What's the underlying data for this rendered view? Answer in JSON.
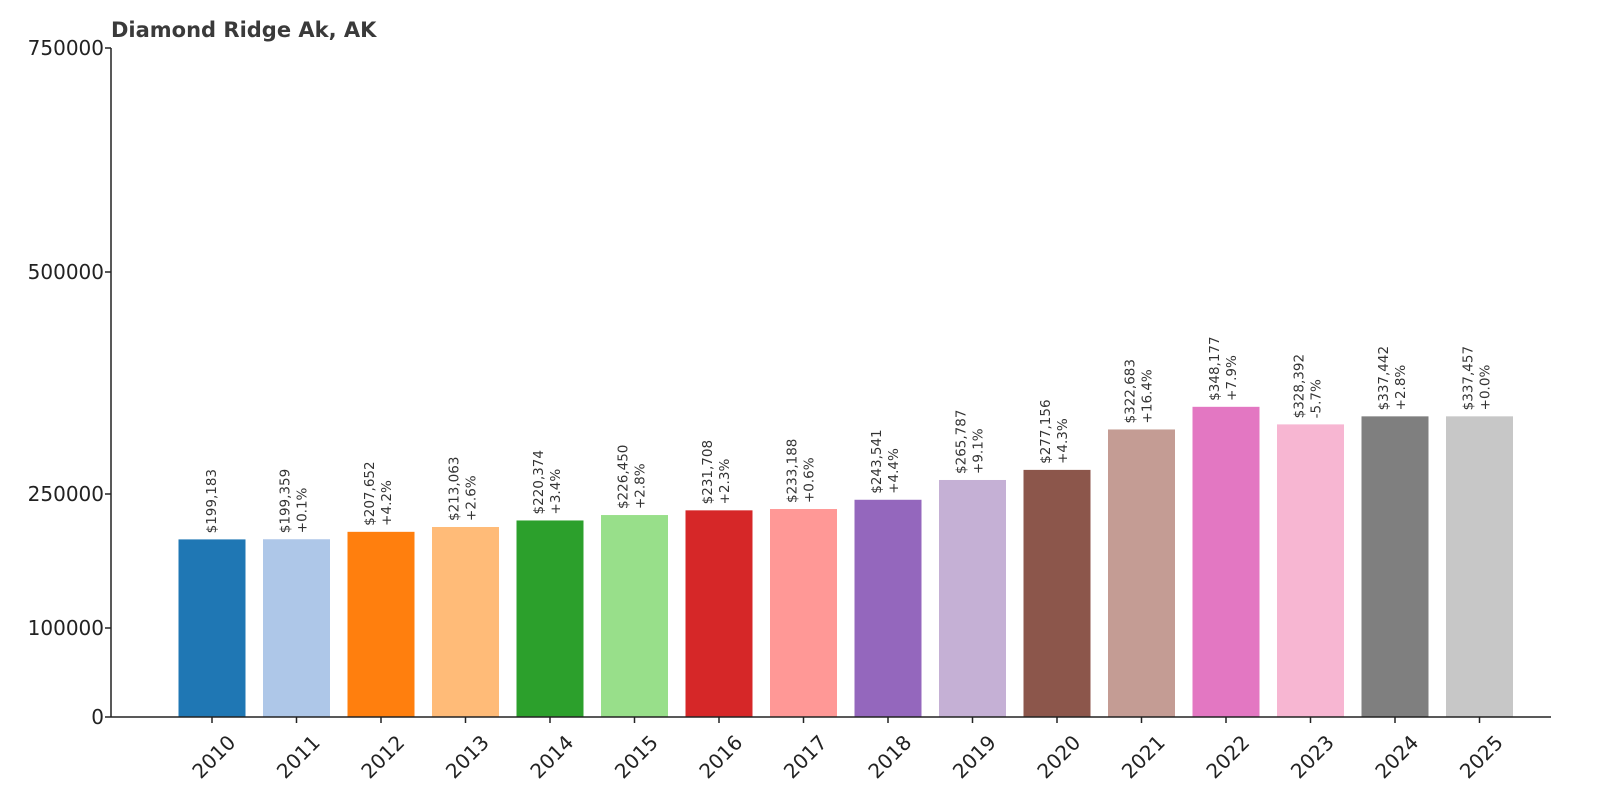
{
  "chart_data": {
    "type": "bar",
    "title": "Diamond Ridge Ak, AK",
    "xlabel": "",
    "ylabel": "",
    "categories": [
      "2010",
      "2011",
      "2012",
      "2013",
      "2014",
      "2015",
      "2016",
      "2017",
      "2018",
      "2019",
      "2020",
      "2021",
      "2022",
      "2023",
      "2024",
      "2025"
    ],
    "values": [
      199183,
      199359,
      207652,
      213063,
      220374,
      226450,
      231708,
      233188,
      243541,
      265787,
      277156,
      322683,
      348177,
      328392,
      337442,
      337457
    ],
    "value_labels": [
      "$199,183",
      "$199,359",
      "$207,652",
      "$213,063",
      "$220,374",
      "$226,450",
      "$231,708",
      "$233,188",
      "$243,541",
      "$265,787",
      "$277,156",
      "$322,683",
      "$348,177",
      "$328,392",
      "$337,442",
      "$337,457"
    ],
    "change_labels": [
      "",
      "+0.1%",
      "+4.2%",
      "+2.6%",
      "+3.4%",
      "+2.8%",
      "+2.3%",
      "+0.6%",
      "+4.4%",
      "+9.1%",
      "+4.3%",
      "+16.4%",
      "+7.9%",
      "-5.7%",
      "+2.8%",
      "+0.0%"
    ],
    "colors": [
      "#1f77b4",
      "#aec7e8",
      "#ff7f0e",
      "#ffbb78",
      "#2ca02c",
      "#98df8a",
      "#d62728",
      "#ff9896",
      "#9467bd",
      "#c5b0d5",
      "#8c564b",
      "#c49c94",
      "#e377c2",
      "#f7b6d2",
      "#7f7f7f",
      "#c7c7c7"
    ],
    "yticks": [
      0,
      100000,
      250000,
      500000,
      750000
    ],
    "ytick_labels": [
      "0",
      "100000",
      "250000",
      "500000",
      "750000"
    ],
    "ylim": [
      0,
      750000
    ],
    "grid": false,
    "legend": "none"
  }
}
